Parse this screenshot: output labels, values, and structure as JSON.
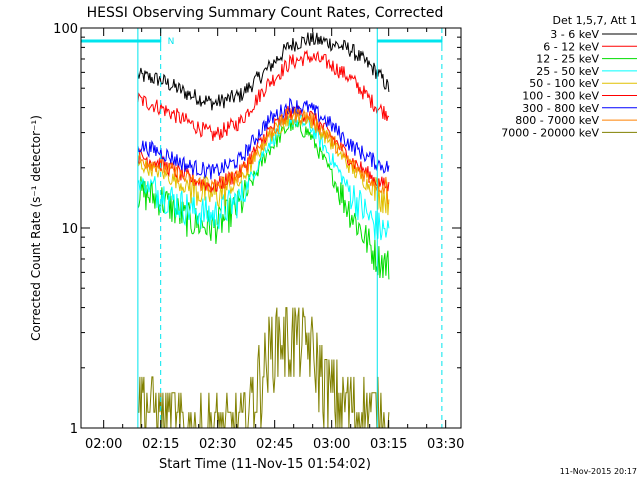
{
  "chart_data": {
    "type": "line",
    "title": "HESSI Observing Summary Count Rates, Corrected",
    "xlabel": "Start Time (11-Nov-15 01:54:02)",
    "ylabel": "Corrected Count Rate (s⁻¹ detector⁻¹)",
    "yscale": "log",
    "ylim": [
      1,
      100
    ],
    "xlim_minutes_after_start": [
      0,
      100
    ],
    "yticks": [
      "1",
      "10",
      "100"
    ],
    "xticks": [
      "02:00",
      "02:15",
      "02:30",
      "02:45",
      "03:00",
      "03:15",
      "03:30"
    ],
    "x_unit": "time (UT), 11-Nov-15",
    "legend_title": "Det 1,5,7, Att 1",
    "legend_position": "outside-right",
    "timestamp": "11-Nov-2015 20:17",
    "night_marker_label": "N",
    "series": [
      {
        "name": "3 - 6 keV",
        "color": "#000000",
        "points": [
          [
            "02:09",
            58
          ],
          [
            "02:15",
            55
          ],
          [
            "02:22",
            47
          ],
          [
            "02:29",
            42
          ],
          [
            "02:36",
            46
          ],
          [
            "02:43",
            62
          ],
          [
            "02:49",
            82
          ],
          [
            "02:54",
            88
          ],
          [
            "02:59",
            85
          ],
          [
            "03:05",
            78
          ],
          [
            "03:12",
            60
          ],
          [
            "03:15",
            50
          ]
        ]
      },
      {
        "name": "6 - 12 keV",
        "color": "#ff0000",
        "points": [
          [
            "02:09",
            44
          ],
          [
            "02:15",
            40
          ],
          [
            "02:22",
            34
          ],
          [
            "02:29",
            29
          ],
          [
            "02:36",
            34
          ],
          [
            "02:43",
            52
          ],
          [
            "02:49",
            67
          ],
          [
            "02:54",
            72
          ],
          [
            "02:59",
            67
          ],
          [
            "03:05",
            56
          ],
          [
            "03:12",
            40
          ],
          [
            "03:15",
            37
          ]
        ]
      },
      {
        "name": "12 - 25 keV",
        "color": "#00dd00",
        "points": [
          [
            "02:09",
            15
          ],
          [
            "02:15",
            14
          ],
          [
            "02:22",
            11
          ],
          [
            "02:29",
            10
          ],
          [
            "02:36",
            13
          ],
          [
            "02:43",
            24
          ],
          [
            "02:49",
            33
          ],
          [
            "02:54",
            30
          ],
          [
            "02:59",
            20
          ],
          [
            "03:05",
            12
          ],
          [
            "03:12",
            7
          ],
          [
            "03:15",
            6.5
          ]
        ]
      },
      {
        "name": "25 - 50 keV",
        "color": "#00ffff",
        "points": [
          [
            "02:09",
            17
          ],
          [
            "02:15",
            15
          ],
          [
            "02:22",
            12.5
          ],
          [
            "02:29",
            11.5
          ],
          [
            "02:36",
            14
          ],
          [
            "02:43",
            26
          ],
          [
            "02:49",
            35
          ],
          [
            "02:54",
            33
          ],
          [
            "02:59",
            24
          ],
          [
            "03:05",
            15
          ],
          [
            "03:12",
            10
          ],
          [
            "03:15",
            9.5
          ]
        ]
      },
      {
        "name": "50 - 100 keV",
        "color": "#e0c000",
        "points": [
          [
            "02:09",
            21
          ],
          [
            "02:15",
            19
          ],
          [
            "02:22",
            16
          ],
          [
            "02:29",
            14.5
          ],
          [
            "02:36",
            17
          ],
          [
            "02:43",
            28
          ],
          [
            "02:49",
            36
          ],
          [
            "02:54",
            35
          ],
          [
            "02:59",
            28
          ],
          [
            "03:05",
            20
          ],
          [
            "03:12",
            15
          ],
          [
            "03:15",
            14
          ]
        ]
      },
      {
        "name": "100 - 300 keV",
        "color": "#ff0000",
        "points": [
          [
            "02:09",
            23
          ],
          [
            "02:15",
            21
          ],
          [
            "02:22",
            18
          ],
          [
            "02:29",
            16
          ],
          [
            "02:36",
            19
          ],
          [
            "02:43",
            30
          ],
          [
            "02:49",
            38
          ],
          [
            "02:54",
            37
          ],
          [
            "02:59",
            30
          ],
          [
            "03:05",
            22
          ],
          [
            "03:12",
            17
          ],
          [
            "03:15",
            16
          ]
        ]
      },
      {
        "name": "300 - 800 keV",
        "color": "#0000ff",
        "points": [
          [
            "02:09",
            26
          ],
          [
            "02:15",
            24
          ],
          [
            "02:22",
            20.5
          ],
          [
            "02:29",
            19
          ],
          [
            "02:36",
            22
          ],
          [
            "02:43",
            34
          ],
          [
            "02:49",
            41
          ],
          [
            "02:54",
            40
          ],
          [
            "02:59",
            34
          ],
          [
            "03:05",
            26
          ],
          [
            "03:12",
            21
          ],
          [
            "03:15",
            20
          ]
        ]
      },
      {
        "name": "800 - 7000 keV",
        "color": "#ff8000",
        "points": [
          [
            "02:09",
            22
          ],
          [
            "02:15",
            20.5
          ],
          [
            "02:22",
            17.5
          ],
          [
            "02:29",
            16
          ],
          [
            "02:36",
            18.5
          ],
          [
            "02:43",
            29
          ],
          [
            "02:49",
            37
          ],
          [
            "02:54",
            36
          ],
          [
            "02:59",
            29
          ],
          [
            "03:05",
            21
          ],
          [
            "03:12",
            16.5
          ],
          [
            "03:15",
            15.5
          ]
        ]
      },
      {
        "name": "7000 - 20000 keV",
        "color": "#808000",
        "points": [
          [
            "02:09",
            1.5
          ],
          [
            "02:15",
            1.2
          ],
          [
            "02:22",
            1
          ],
          [
            "02:29",
            1
          ],
          [
            "02:36",
            1
          ],
          [
            "02:40",
            1.6
          ],
          [
            "02:45",
            2.8
          ],
          [
            "02:50",
            3
          ],
          [
            "02:54",
            2.6
          ],
          [
            "02:59",
            1.6
          ],
          [
            "03:05",
            1.3
          ],
          [
            "03:12",
            1.2
          ],
          [
            "03:15",
            1
          ]
        ]
      }
    ],
    "spacecraft_markers": {
      "color": "#00e5ee",
      "solid_verticals": [
        "02:09",
        "03:12"
      ],
      "dashed_verticals": [
        "02:15",
        "03:29"
      ],
      "night_bars": [
        [
          "01:54",
          "02:15"
        ],
        [
          "03:12",
          "03:29"
        ]
      ]
    }
  }
}
